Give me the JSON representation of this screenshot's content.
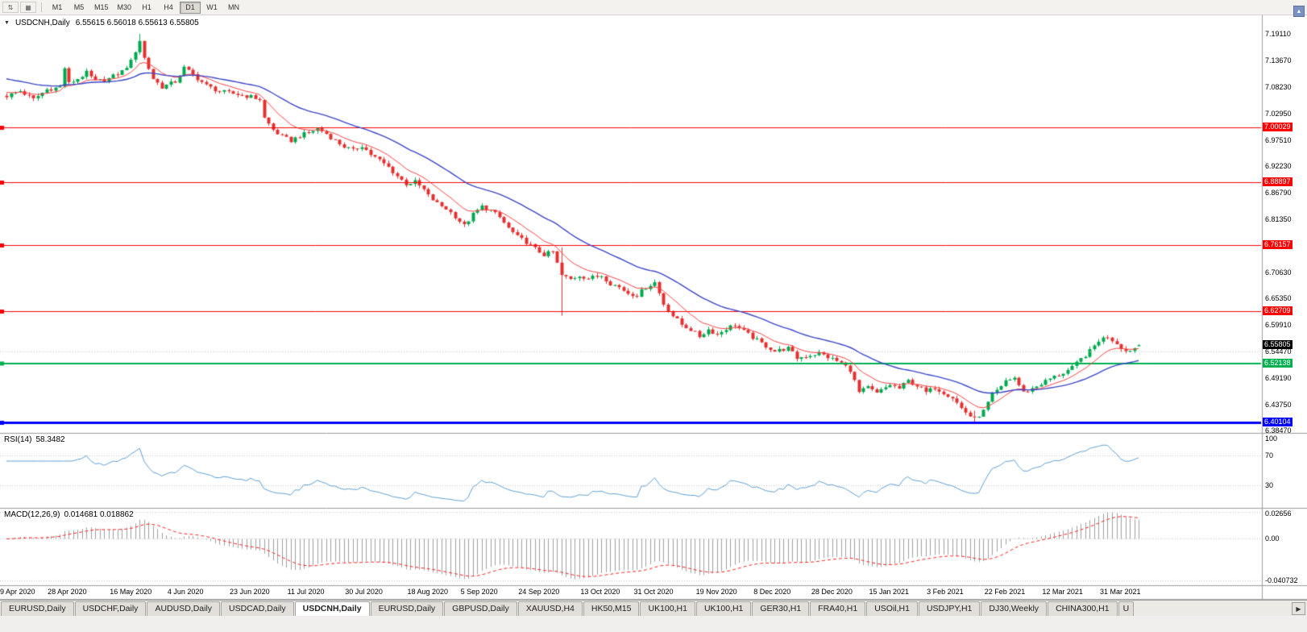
{
  "toolbar": {
    "icon_buttons": [
      {
        "name": "cycle-arrows-icon",
        "glyph": "⇅"
      },
      {
        "name": "grid-icon",
        "glyph": "▦"
      }
    ],
    "timeframes": [
      "M1",
      "M5",
      "M15",
      "M30",
      "H1",
      "H4",
      "D1",
      "W1",
      "MN"
    ],
    "active_timeframe": "D1"
  },
  "chart": {
    "symbol_label": "USDCNH,Daily",
    "ohlc_label": "6.55615 6.56018 6.55613 6.55805",
    "menu_icon_glyph": "▼"
  },
  "scroll_up_button": {
    "glyph": "▲"
  },
  "chart_data": {
    "type": "candlestick",
    "symbol": "USDCNH",
    "timeframe": "Daily",
    "last": {
      "o": 6.55615,
      "h": 6.56018,
      "l": 6.55613,
      "c": 6.55805
    },
    "current_price": 6.55805,
    "current_price_label": "6.55805",
    "price_range": {
      "max": 7.2272,
      "min": 6.3815
    },
    "num_candles": 256,
    "colors": {
      "bull": "#00A94F",
      "bear": "#E33030",
      "ma_fast": "#FF4040",
      "ma_slow": "#3A46C8",
      "rsi_line": "#5E9FD4",
      "macd_hist": "#9E9E9E",
      "macd_signal": "#FF2020",
      "grid_dotted": "#C6C6C6"
    },
    "ma_periods": {
      "fast": 10,
      "slow": 30
    },
    "anchors": [
      [
        0,
        7.065
      ],
      [
        3,
        7.075
      ],
      [
        6,
        7.058
      ],
      [
        9,
        7.078
      ],
      [
        12,
        7.083
      ],
      [
        13,
        7.122
      ],
      [
        14,
        7.09
      ],
      [
        16,
        7.1
      ],
      [
        18,
        7.112
      ],
      [
        20,
        7.094
      ],
      [
        23,
        7.1
      ],
      [
        26,
        7.115
      ],
      [
        28,
        7.135
      ],
      [
        30,
        7.178
      ],
      [
        31,
        7.142
      ],
      [
        33,
        7.1
      ],
      [
        35,
        7.083
      ],
      [
        38,
        7.094
      ],
      [
        40,
        7.122
      ],
      [
        42,
        7.108
      ],
      [
        45,
        7.086
      ],
      [
        48,
        7.074
      ],
      [
        52,
        7.068
      ],
      [
        55,
        7.063
      ],
      [
        57,
        7.058
      ],
      [
        58,
        7.02
      ],
      [
        60,
        6.996
      ],
      [
        62,
        6.982
      ],
      [
        64,
        6.974
      ],
      [
        66,
        6.984
      ],
      [
        68,
        6.99
      ],
      [
        70,
        6.999
      ],
      [
        72,
        6.988
      ],
      [
        74,
        6.974
      ],
      [
        76,
        6.962
      ],
      [
        78,
        6.954
      ],
      [
        80,
        6.964
      ],
      [
        82,
        6.946
      ],
      [
        84,
        6.934
      ],
      [
        86,
        6.92
      ],
      [
        88,
        6.902
      ],
      [
        90,
        6.886
      ],
      [
        92,
        6.89
      ],
      [
        94,
        6.874
      ],
      [
        95,
        6.862
      ],
      [
        97,
        6.846
      ],
      [
        99,
        6.836
      ],
      [
        101,
        6.82
      ],
      [
        103,
        6.801
      ],
      [
        105,
        6.824
      ],
      [
        107,
        6.84
      ],
      [
        109,
        6.832
      ],
      [
        111,
        6.818
      ],
      [
        113,
        6.796
      ],
      [
        115,
        6.778
      ],
      [
        117,
        6.768
      ],
      [
        119,
        6.754
      ],
      [
        121,
        6.742
      ],
      [
        123,
        6.748
      ],
      [
        125,
        6.7
      ],
      [
        127,
        6.692
      ],
      [
        129,
        6.7
      ],
      [
        131,
        6.694
      ],
      [
        134,
        6.7
      ],
      [
        136,
        6.684
      ],
      [
        138,
        6.676
      ],
      [
        140,
        6.664
      ],
      [
        142,
        6.66
      ],
      [
        144,
        6.676
      ],
      [
        146,
        6.686
      ],
      [
        148,
        6.642
      ],
      [
        150,
        6.618
      ],
      [
        152,
        6.6
      ],
      [
        154,
        6.59
      ],
      [
        156,
        6.576
      ],
      [
        158,
        6.59
      ],
      [
        160,
        6.58
      ],
      [
        162,
        6.592
      ],
      [
        164,
        6.6
      ],
      [
        166,
        6.586
      ],
      [
        168,
        6.574
      ],
      [
        170,
        6.562
      ],
      [
        173,
        6.546
      ],
      [
        176,
        6.552
      ],
      [
        178,
        6.532
      ],
      [
        180,
        6.536
      ],
      [
        183,
        6.542
      ],
      [
        186,
        6.53
      ],
      [
        188,
        6.522
      ],
      [
        190,
        6.508
      ],
      [
        192,
        6.462
      ],
      [
        194,
        6.472
      ],
      [
        196,
        6.46
      ],
      [
        199,
        6.478
      ],
      [
        201,
        6.47
      ],
      [
        203,
        6.486
      ],
      [
        205,
        6.476
      ],
      [
        207,
        6.462
      ],
      [
        209,
        6.472
      ],
      [
        211,
        6.462
      ],
      [
        213,
        6.452
      ],
      [
        215,
        6.43
      ],
      [
        217,
        6.414
      ],
      [
        218,
        6.408
      ],
      [
        220,
        6.424
      ],
      [
        222,
        6.458
      ],
      [
        224,
        6.472
      ],
      [
        225,
        6.486
      ],
      [
        227,
        6.492
      ],
      [
        229,
        6.462
      ],
      [
        231,
        6.47
      ],
      [
        233,
        6.48
      ],
      [
        235,
        6.49
      ],
      [
        238,
        6.502
      ],
      [
        240,
        6.512
      ],
      [
        242,
        6.53
      ],
      [
        244,
        6.546
      ],
      [
        246,
        6.568
      ],
      [
        248,
        6.576
      ],
      [
        250,
        6.562
      ],
      [
        252,
        6.546
      ],
      [
        254,
        6.552
      ],
      [
        255,
        6.558
      ]
    ],
    "spikes": [
      {
        "i": 30,
        "h": 7.191,
        "l": 7.152
      },
      {
        "i": 125,
        "h": 6.757,
        "l": 6.618
      },
      {
        "i": 218,
        "h": 6.425,
        "l": 6.401
      }
    ],
    "y_axis_labels": [
      {
        "value": 7.1911,
        "label": "7.19110"
      },
      {
        "value": 7.1367,
        "label": "7.13670"
      },
      {
        "value": 7.0823,
        "label": "7.08230"
      },
      {
        "value": 7.0295,
        "label": "7.02950"
      },
      {
        "value": 6.9751,
        "label": "6.97510"
      },
      {
        "value": 6.9223,
        "label": "6.92230"
      },
      {
        "value": 6.8679,
        "label": "6.86790"
      },
      {
        "value": 6.8135,
        "label": "6.81350"
      },
      {
        "value": 6.7607,
        "label": "6.76070"
      },
      {
        "value": 6.7063,
        "label": "6.70630"
      },
      {
        "value": 6.6535,
        "label": "6.65350"
      },
      {
        "value": 6.5991,
        "label": "6.59910"
      },
      {
        "value": 6.5447,
        "label": "6.54470"
      },
      {
        "value": 6.4919,
        "label": "6.49190"
      },
      {
        "value": 6.4375,
        "label": "6.43750"
      },
      {
        "value": 6.3847,
        "label": "6.38470"
      }
    ],
    "x_axis_labels": [
      {
        "i": 0,
        "label": "9 Apr 2020"
      },
      {
        "i": 14,
        "label": "28 Apr 2020"
      },
      {
        "i": 28,
        "label": "16 May 2020"
      },
      {
        "i": 41,
        "label": "4 Jun 2020"
      },
      {
        "i": 55,
        "label": "23 Jun 2020"
      },
      {
        "i": 68,
        "label": "11 Jul 2020"
      },
      {
        "i": 81,
        "label": "30 Jul 2020"
      },
      {
        "i": 95,
        "label": "18 Aug 2020"
      },
      {
        "i": 107,
        "label": "5 Sep 2020"
      },
      {
        "i": 120,
        "label": "24 Sep 2020"
      },
      {
        "i": 134,
        "label": "13 Oct 2020"
      },
      {
        "i": 146,
        "label": "31 Oct 2020"
      },
      {
        "i": 160,
        "label": "19 Nov 2020"
      },
      {
        "i": 173,
        "label": "8 Dec 2020"
      },
      {
        "i": 186,
        "label": "28 Dec 2020"
      },
      {
        "i": 199,
        "label": "15 Jan 2021"
      },
      {
        "i": 212,
        "label": "3 Feb 2021"
      },
      {
        "i": 225,
        "label": "22 Feb 2021"
      },
      {
        "i": 238,
        "label": "12 Mar 2021"
      },
      {
        "i": 251,
        "label": "31 Mar 2021"
      }
    ],
    "hlines": [
      {
        "price": 7.00029,
        "color": "#FF0000",
        "width": 1,
        "label": "7.00029",
        "style": "solid"
      },
      {
        "price": 6.88897,
        "color": "#FF0000",
        "width": 1,
        "label": "6.88897",
        "style": "solid"
      },
      {
        "price": 6.76157,
        "color": "#FF0000",
        "width": 1,
        "label": "6.76157",
        "style": "solid"
      },
      {
        "price": 6.62709,
        "color": "#FF0000",
        "width": 1,
        "label": "6.62709",
        "style": "solid"
      },
      {
        "price": 6.52138,
        "color": "#00B050",
        "width": 2,
        "label": "6.52138",
        "style": "solid"
      },
      {
        "price": 6.40104,
        "color": "#0000FF",
        "width": 3,
        "label": "6.40104",
        "style": "solid"
      },
      {
        "price": 6.5447,
        "color": "#C9C9C9",
        "width": 1,
        "label": null,
        "style": "dot"
      }
    ],
    "rsi": {
      "title": "RSI(14)",
      "value_label": "58.3482",
      "period": 14,
      "levels": [
        70,
        30
      ],
      "range": [
        0,
        100
      ],
      "axis_labels": [
        {
          "value": 100,
          "label": "100"
        },
        {
          "value": 70,
          "label": "70"
        },
        {
          "value": 30,
          "label": "30"
        }
      ]
    },
    "macd": {
      "title": "MACD(12,26,9)",
      "values_label": "0.014681 0.018862",
      "fast": 12,
      "slow": 26,
      "signal": 9,
      "range": {
        "max": 0.0295,
        "min": -0.0445
      },
      "axis_labels": [
        {
          "value": 0.02656,
          "label": "0.02656"
        },
        {
          "value": 0,
          "label": "0.00"
        },
        {
          "value": -0.040732,
          "label": "-0.040732"
        }
      ]
    }
  },
  "tabs": {
    "active_index": 4,
    "scroll_right_glyph": "▶",
    "items": [
      {
        "label": "EURUSD,Daily"
      },
      {
        "label": "USDCHF,Daily"
      },
      {
        "label": "AUDUSD,Daily"
      },
      {
        "label": "USDCAD,Daily"
      },
      {
        "label": "USDCNH,Daily"
      },
      {
        "label": "EURUSD,Daily"
      },
      {
        "label": "GBPUSD,Daily"
      },
      {
        "label": "XAUUSD,H4"
      },
      {
        "label": "HK50,M15"
      },
      {
        "label": "UK100,H1"
      },
      {
        "label": "UK100,H1"
      },
      {
        "label": "GER30,H1"
      },
      {
        "label": "FRA40,H1"
      },
      {
        "label": "USOil,H1"
      },
      {
        "label": "USDJPY,H1"
      },
      {
        "label": "DJ30,Weekly"
      },
      {
        "label": "CHINA300,H1"
      },
      {
        "label": "U",
        "partial": true
      }
    ]
  }
}
